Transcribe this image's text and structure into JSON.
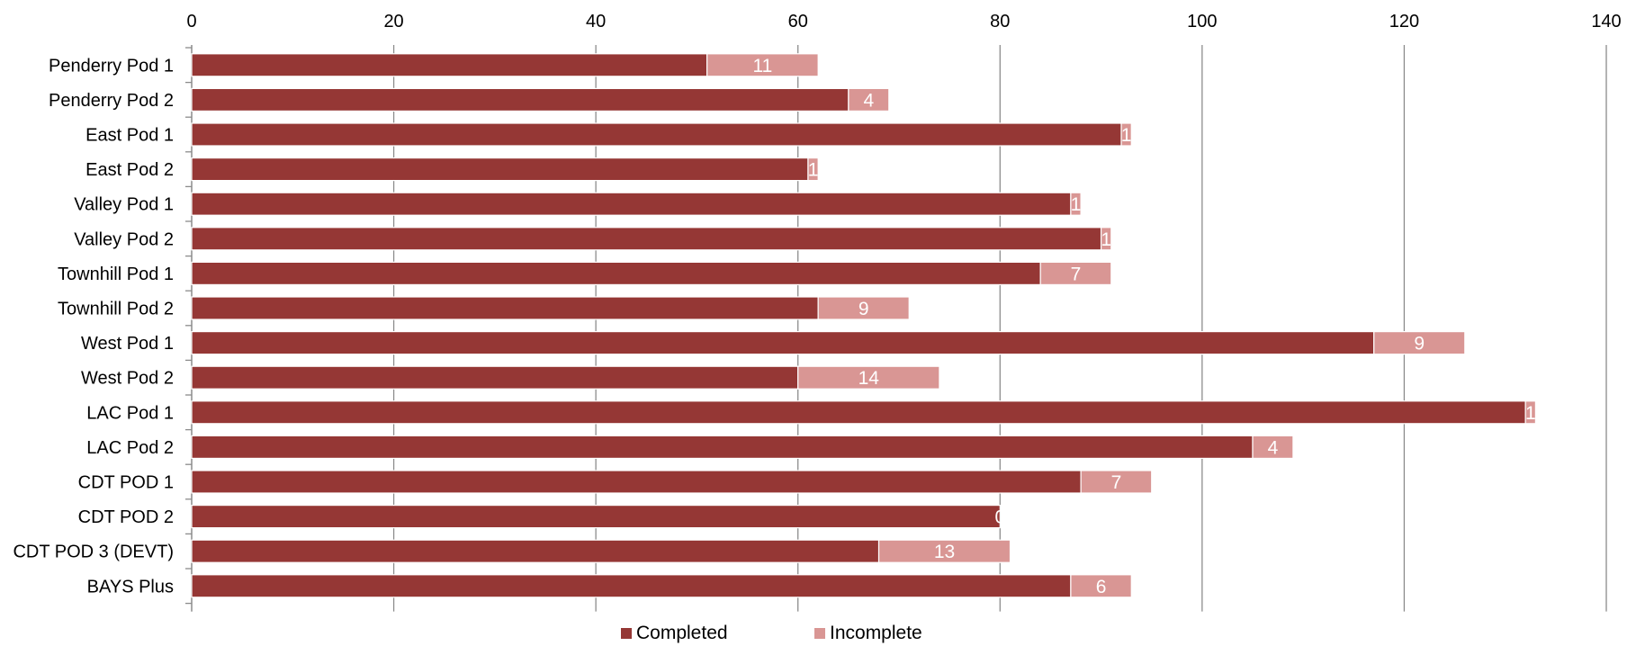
{
  "chart_data": {
    "type": "bar",
    "orientation": "horizontal",
    "stacked": true,
    "title": "",
    "xlabel": "",
    "ylabel": "",
    "xlim": [
      0,
      140
    ],
    "x_ticks": [
      0,
      20,
      40,
      60,
      80,
      100,
      120,
      140
    ],
    "x_axis_position": "top",
    "grid": true,
    "legend_position": "bottom",
    "categories": [
      "Penderry Pod 1",
      "Penderry Pod 2",
      "East Pod 1",
      "East Pod 2",
      "Valley Pod 1",
      "Valley Pod 2",
      "Townhill Pod 1",
      "Townhill Pod 2",
      "West Pod 1",
      "West Pod 2",
      "LAC Pod 1",
      "LAC Pod 2",
      "CDT POD 1",
      "CDT POD 2",
      "CDT POD 3 (DEVT)",
      "BAYS Plus"
    ],
    "series": [
      {
        "name": "Completed",
        "color": "#953735",
        "values": [
          51,
          65,
          92,
          61,
          87,
          90,
          84,
          62,
          117,
          60,
          132,
          105,
          88,
          80,
          68,
          87
        ],
        "show_labels": false
      },
      {
        "name": "Incomplete",
        "color": "#d99694",
        "values": [
          11,
          4,
          1,
          1,
          1,
          1,
          7,
          9,
          9,
          14,
          1,
          4,
          7,
          0,
          13,
          6
        ],
        "show_labels": true
      }
    ]
  }
}
